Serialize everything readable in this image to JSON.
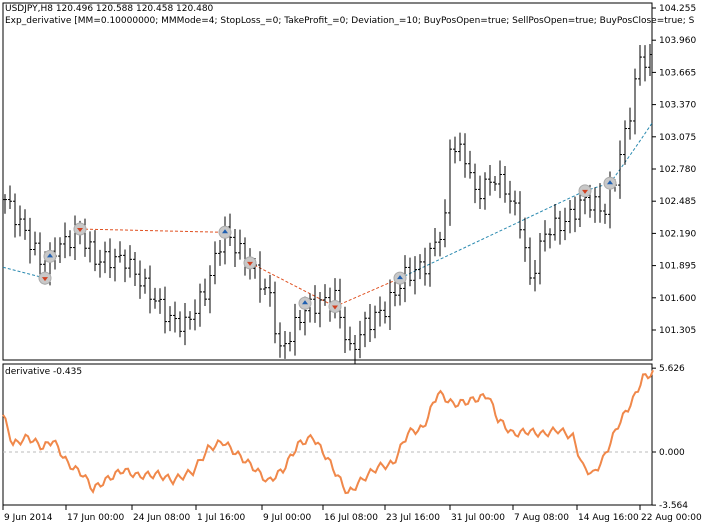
{
  "header": {
    "symbol_line": "USDJPY,H8  120.496 120.588 120.458 120.480",
    "expert_line": "Exp_derivative [MM=0.10000000; MMMode=4; StopLoss_=0; TakeProfit_=0; Deviation_=10; BuyPosOpen=true; SellPosOpen=true; BuyPosClose=true; S"
  },
  "indicator_label": "derivative -0.435",
  "colors": {
    "candle": "#000000",
    "derivative": "#f0884a",
    "buy": "#1f5fb0",
    "sell": "#d04020",
    "ma_up": "#2a8ab0",
    "ma_down": "#e05020"
  },
  "chart_data": [
    {
      "type": "candlestick",
      "title": "USDJPY,H8",
      "ylim": [
        101.1,
        104.3
      ],
      "y_ticks": [
        "104.255",
        "103.960",
        "103.665",
        "103.370",
        "103.075",
        "102.780",
        "102.485",
        "102.190",
        "101.895",
        "101.600",
        "101.305"
      ],
      "x_ticks": [
        "9 Jun 2014",
        "17 Jun 00:00",
        "24 Jun 08:00",
        "1 Jul 16:00",
        "9 Jul 00:00",
        "16 Jul 08:00",
        "23 Jul 16:00",
        "31 Jul 00:00",
        "7 Aug 08:00",
        "14 Aug 16:00",
        "22 Aug 00:00"
      ],
      "close_keypoints": [
        [
          0,
          102.5
        ],
        [
          4,
          102.2
        ],
        [
          8,
          101.85
        ],
        [
          10,
          102.05
        ],
        [
          15,
          102.2
        ],
        [
          18,
          101.95
        ],
        [
          24,
          101.95
        ],
        [
          28,
          101.7
        ],
        [
          33,
          101.4
        ],
        [
          36,
          101.35
        ],
        [
          40,
          101.65
        ],
        [
          43,
          102.1
        ],
        [
          44,
          102.2
        ],
        [
          49,
          101.9
        ],
        [
          53,
          101.6
        ],
        [
          55,
          101.1
        ],
        [
          60,
          101.5
        ],
        [
          66,
          101.6
        ],
        [
          69,
          101.1
        ],
        [
          72,
          101.35
        ],
        [
          76,
          101.5
        ],
        [
          80,
          101.8
        ],
        [
          84,
          101.9
        ],
        [
          88,
          102.3
        ],
        [
          89,
          103.0
        ],
        [
          92,
          102.9
        ],
        [
          94,
          102.55
        ],
        [
          98,
          102.7
        ],
        [
          100,
          102.6
        ],
        [
          103,
          102.3
        ],
        [
          105,
          101.75
        ],
        [
          108,
          102.2
        ],
        [
          112,
          102.3
        ],
        [
          116,
          102.5
        ],
        [
          120,
          102.4
        ],
        [
          122,
          102.7
        ],
        [
          125,
          103.3
        ],
        [
          127,
          103.8
        ],
        [
          129,
          103.75
        ]
      ],
      "trades": [
        {
          "bar": 8,
          "side": "sell",
          "price": 101.78
        },
        {
          "bar": 9,
          "side": "buy",
          "price": 101.98
        },
        {
          "bar": 15,
          "side": "sell",
          "price": 102.23
        },
        {
          "bar": 44,
          "side": "buy",
          "price": 102.2
        },
        {
          "bar": 49,
          "side": "sell",
          "price": 101.92
        },
        {
          "bar": 60,
          "side": "buy",
          "price": 101.55
        },
        {
          "bar": 66,
          "side": "sell",
          "price": 101.52
        },
        {
          "bar": 79,
          "side": "buy",
          "price": 101.78
        },
        {
          "bar": 116,
          "side": "sell",
          "price": 102.58
        },
        {
          "bar": 121,
          "side": "buy",
          "price": 102.65
        }
      ]
    },
    {
      "type": "line",
      "title": "derivative",
      "ylim": [
        -3.564,
        5.626
      ],
      "y_ticks": [
        "5.626",
        "0.000",
        "-3.564"
      ],
      "keypoints": [
        [
          0,
          2.5
        ],
        [
          2,
          0.5
        ],
        [
          5,
          1.0
        ],
        [
          8,
          0.3
        ],
        [
          10,
          0.8
        ],
        [
          13,
          -0.8
        ],
        [
          16,
          -1.5
        ],
        [
          18,
          -2.5
        ],
        [
          21,
          -1.8
        ],
        [
          24,
          -1.2
        ],
        [
          27,
          -1.6
        ],
        [
          31,
          -1.5
        ],
        [
          34,
          -1.9
        ],
        [
          38,
          -1.3
        ],
        [
          41,
          0.2
        ],
        [
          44,
          0.7
        ],
        [
          47,
          -0.2
        ],
        [
          50,
          -1.0
        ],
        [
          53,
          -2.0
        ],
        [
          56,
          -1.2
        ],
        [
          59,
          0.5
        ],
        [
          62,
          1.0
        ],
        [
          65,
          -0.5
        ],
        [
          69,
          -2.8
        ],
        [
          72,
          -1.8
        ],
        [
          75,
          -1.0
        ],
        [
          78,
          -0.8
        ],
        [
          81,
          1.3
        ],
        [
          84,
          1.6
        ],
        [
          87,
          4.0
        ],
        [
          90,
          3.2
        ],
        [
          93,
          3.4
        ],
        [
          97,
          3.8
        ],
        [
          99,
          2.2
        ],
        [
          102,
          1.2
        ],
        [
          105,
          1.4
        ],
        [
          108,
          1.2
        ],
        [
          111,
          1.5
        ],
        [
          114,
          1.0
        ],
        [
          116,
          -1.0
        ],
        [
          118,
          -1.5
        ],
        [
          120,
          -0.5
        ],
        [
          123,
          1.8
        ],
        [
          126,
          3.5
        ],
        [
          128,
          5.0
        ],
        [
          130,
          5.3
        ]
      ]
    }
  ]
}
